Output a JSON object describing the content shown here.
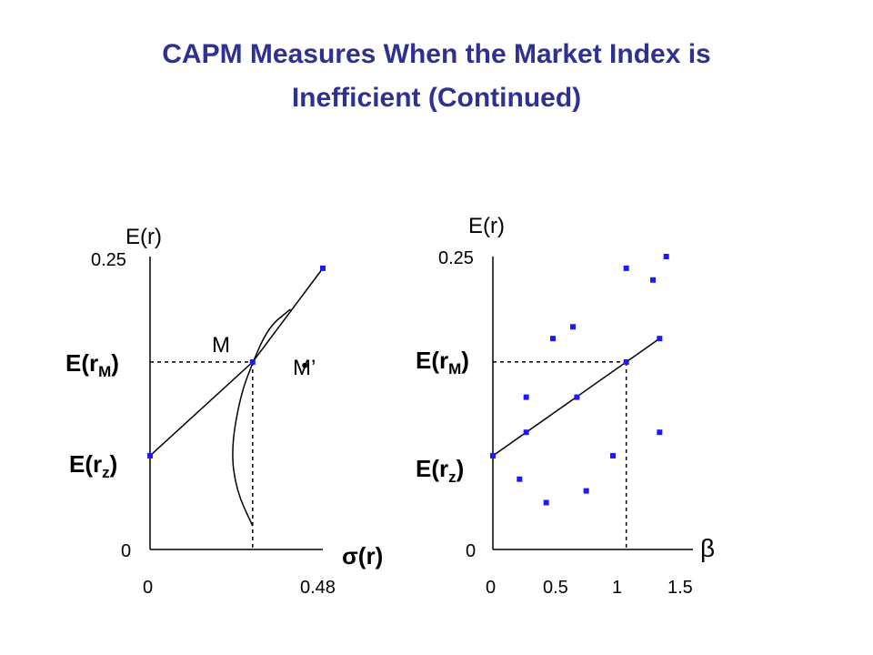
{
  "title_line1": "CAPM Measures When the Market Index is",
  "title_line2": "Inefficient (Continued)",
  "colors": {
    "title": "#2e3192",
    "marker": "#1a1aff",
    "line": "#000000"
  },
  "chart_data": [
    {
      "type": "line",
      "ylabel": "E(r)",
      "xlabel": "σ(r)",
      "xlim": [
        0,
        0.48
      ],
      "ylim": [
        0,
        0.25
      ],
      "xticks": [
        "0",
        "0.48"
      ],
      "yticks": [
        "0.25",
        "0"
      ],
      "point_labels": {
        "M": "M",
        "M_prime": "M’"
      },
      "y_markers": {
        "rM": "E(r",
        "rM_sub": "M",
        "rz": "E(r",
        "rz_sub": "z",
        "close": ")"
      },
      "values": {
        "rz": 0.08,
        "rM": 0.16,
        "sigmaM": 0.285
      },
      "series": [
        {
          "values": [
            [
              0,
              0.08
            ],
            [
              0.285,
              0.16
            ],
            [
              0.48,
              0.24
            ]
          ]
        },
        {
          "values": [
            [
              0.285,
              0.02
            ],
            [
              0.24,
              0.05
            ],
            [
              0.225,
              0.085
            ],
            [
              0.25,
              0.13
            ],
            [
              0.285,
              0.16
            ],
            [
              0.33,
              0.19
            ],
            [
              0.39,
              0.205
            ]
          ]
        }
      ],
      "points": [
        {
          "x": 0,
          "y": 0.08
        },
        {
          "x": 0.285,
          "y": 0.16
        },
        {
          "x": 0.48,
          "y": 0.24
        },
        {
          "x": 0.43,
          "y": 0.157
        }
      ]
    },
    {
      "type": "scatter",
      "ylabel": "E(r)",
      "xlabel": "β",
      "xlim": [
        0,
        1.5
      ],
      "ylim": [
        0,
        0.25
      ],
      "xticks": [
        "0",
        "0.5",
        "1",
        "1.5"
      ],
      "yticks": [
        "0.25",
        "0"
      ],
      "y_markers": {
        "rM": "E(r",
        "rM_sub": "M",
        "rz": "E(r",
        "rz_sub": "z",
        "close": ")"
      },
      "values": {
        "rz": 0.08,
        "rM": 0.16,
        "betaM": 1.0
      },
      "line": [
        [
          0,
          0.08
        ],
        [
          1.25,
          0.18
        ]
      ],
      "points": [
        {
          "x": 0,
          "y": 0.08
        },
        {
          "x": 0.2,
          "y": 0.06
        },
        {
          "x": 0.25,
          "y": 0.1
        },
        {
          "x": 0.25,
          "y": 0.13
        },
        {
          "x": 0.4,
          "y": 0.04
        },
        {
          "x": 0.45,
          "y": 0.18
        },
        {
          "x": 0.6,
          "y": 0.19
        },
        {
          "x": 0.63,
          "y": 0.13
        },
        {
          "x": 0.7,
          "y": 0.05
        },
        {
          "x": 0.9,
          "y": 0.08
        },
        {
          "x": 1.0,
          "y": 0.16
        },
        {
          "x": 1.0,
          "y": 0.24
        },
        {
          "x": 1.2,
          "y": 0.23
        },
        {
          "x": 1.25,
          "y": 0.18
        },
        {
          "x": 1.25,
          "y": 0.1
        },
        {
          "x": 1.3,
          "y": 0.25
        }
      ]
    }
  ]
}
